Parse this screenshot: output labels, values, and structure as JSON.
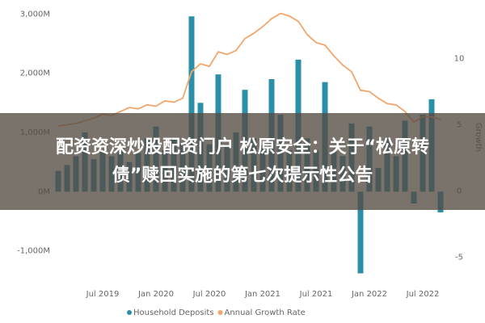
{
  "chart_data": {
    "type": "bar-line",
    "categories": [
      null,
      null,
      null,
      null,
      null,
      "Jul 2019",
      null,
      null,
      null,
      null,
      null,
      "Jan 2020",
      null,
      null,
      null,
      null,
      null,
      "Jul 2020",
      null,
      null,
      null,
      null,
      null,
      "Jan 2021",
      null,
      null,
      null,
      null,
      null,
      "Jul 2021",
      null,
      null,
      null,
      null,
      null,
      "Jan 2022",
      null,
      null,
      null,
      null,
      null,
      "Jul 2022",
      null,
      null
    ],
    "series": [
      {
        "name": "Household Deposits",
        "type": "bar",
        "color": "#2b8fa8",
        "values": [
          350,
          450,
          600,
          1000,
          550,
          700,
          600,
          750,
          500,
          650,
          900,
          1100,
          700,
          900,
          800,
          2960,
          1500,
          800,
          1980,
          800,
          1000,
          1720,
          900,
          800,
          1900,
          1300,
          700,
          2230,
          900,
          700,
          1850,
          700,
          600,
          1150,
          -1380,
          1100,
          400,
          900,
          600,
          1200,
          -200,
          1300,
          1560,
          -350
        ]
      },
      {
        "name": "Annual Growth Rate",
        "type": "line",
        "axis": "y2",
        "color": "#f2a66c",
        "values": [
          4.9,
          5.0,
          5.1,
          5.3,
          5.5,
          5.8,
          5.7,
          6.0,
          6.3,
          6.2,
          6.5,
          6.4,
          6.8,
          6.7,
          7.0,
          9.0,
          9.6,
          9.4,
          10.5,
          10.3,
          10.6,
          11.5,
          11.9,
          12.4,
          13.0,
          13.4,
          13.2,
          12.8,
          11.8,
          11.2,
          11.0,
          10.2,
          9.5,
          9.0,
          7.6,
          7.5,
          7.0,
          6.6,
          6.5,
          6.0,
          5.2,
          5.6,
          5.6,
          5.4
        ]
      }
    ],
    "ylim": [
      -1400,
      3100
    ],
    "yticks": [
      {
        "value": 3000,
        "label": "3,000M"
      },
      {
        "value": 2000,
        "label": "2,000M"
      },
      {
        "value": 1000,
        "label": "1,000M"
      },
      {
        "value": 0,
        "label": "0M"
      },
      {
        "value": -1000,
        "label": "-1,000M"
      }
    ],
    "y2lim": [
      -6.3,
      13.8
    ],
    "y2ticks": [
      10,
      5,
      0,
      -5
    ],
    "y2_label": "Growth",
    "legend": "bottom"
  },
  "banner": {
    "lines": [
      "配资资深炒股配资门户 松原安全：关于“松原转",
      "债”赎回实施的第七次提示性公告"
    ]
  }
}
